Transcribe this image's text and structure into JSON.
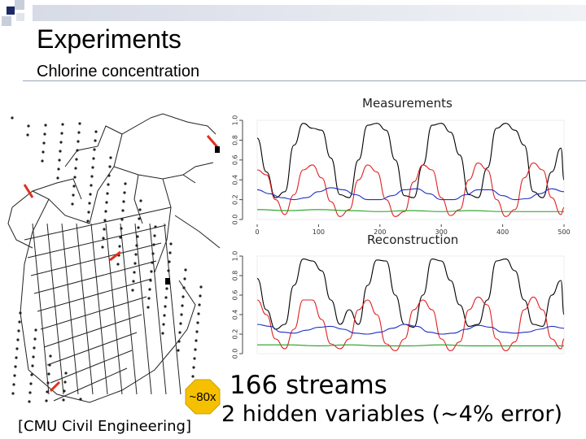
{
  "slide": {
    "title": "Experiments",
    "subtitle": "Chlorine concentration",
    "streams": "166 streams",
    "hidden_vars": "2 hidden variables (~4% error)",
    "badge": "~80x",
    "source": "[CMU Civil Engineering]",
    "accent_color": "#1c2a66",
    "badge_color": "#f5c000"
  },
  "chart_data": [
    {
      "type": "line",
      "title": "Measurements",
      "xlim": [
        0,
        500
      ],
      "ylim": [
        0,
        1
      ],
      "xticks": [
        0,
        100,
        200,
        300,
        400,
        500
      ],
      "yticks": [
        "0.0",
        "0.2",
        "0.4",
        "0.6",
        "0.8",
        "1.0"
      ],
      "series": [
        {
          "color": "#000000",
          "x": [
            0,
            15,
            30,
            45,
            60,
            75,
            90,
            105,
            120,
            135,
            150,
            165,
            180,
            195,
            210,
            225,
            240,
            255,
            270,
            285,
            300,
            315,
            330,
            345,
            360,
            375,
            390,
            405,
            420,
            435,
            450,
            465,
            480,
            495,
            500
          ],
          "y": [
            0.82,
            0.48,
            0.22,
            0.28,
            0.75,
            0.97,
            0.92,
            0.9,
            0.62,
            0.25,
            0.22,
            0.6,
            0.95,
            0.97,
            0.9,
            0.6,
            0.24,
            0.22,
            0.55,
            0.95,
            0.97,
            0.88,
            0.65,
            0.25,
            0.22,
            0.52,
            0.92,
            0.97,
            0.9,
            0.75,
            0.28,
            0.22,
            0.48,
            0.72,
            0.4
          ]
        },
        {
          "color": "#e02020",
          "x": [
            0,
            15,
            30,
            45,
            60,
            75,
            90,
            105,
            120,
            135,
            150,
            165,
            180,
            195,
            210,
            225,
            240,
            255,
            270,
            285,
            300,
            315,
            330,
            345,
            360,
            375,
            390,
            405,
            420,
            435,
            450,
            465,
            480,
            495,
            500
          ],
          "y": [
            0.5,
            0.45,
            0.2,
            0.05,
            0.25,
            0.5,
            0.55,
            0.42,
            0.18,
            0.03,
            0.1,
            0.4,
            0.55,
            0.48,
            0.2,
            0.03,
            0.08,
            0.38,
            0.55,
            0.5,
            0.22,
            0.04,
            0.1,
            0.4,
            0.57,
            0.5,
            0.2,
            0.03,
            0.1,
            0.42,
            0.57,
            0.5,
            0.22,
            0.05,
            0.12
          ]
        },
        {
          "color": "#2030c0",
          "x": [
            0,
            20,
            40,
            60,
            80,
            100,
            120,
            140,
            160,
            180,
            200,
            220,
            240,
            260,
            280,
            300,
            320,
            340,
            360,
            380,
            400,
            420,
            440,
            460,
            480,
            500
          ],
          "y": [
            0.3,
            0.26,
            0.22,
            0.2,
            0.22,
            0.28,
            0.32,
            0.3,
            0.25,
            0.2,
            0.2,
            0.24,
            0.3,
            0.31,
            0.26,
            0.2,
            0.2,
            0.25,
            0.3,
            0.3,
            0.24,
            0.2,
            0.21,
            0.26,
            0.31,
            0.28
          ]
        },
        {
          "color": "#20a020",
          "x": [
            0,
            50,
            100,
            150,
            200,
            250,
            300,
            350,
            400,
            450,
            500
          ],
          "y": [
            0.1,
            0.09,
            0.1,
            0.09,
            0.08,
            0.09,
            0.08,
            0.09,
            0.08,
            0.08,
            0.08
          ]
        }
      ]
    },
    {
      "type": "line",
      "title": "Reconstruction",
      "xlim": [
        0,
        500
      ],
      "ylim": [
        0,
        1
      ],
      "yticks": [
        "0.0",
        "0.2",
        "0.4",
        "0.6",
        "0.8",
        "1.0"
      ],
      "series": [
        {
          "color": "#000000",
          "x": [
            0,
            15,
            30,
            45,
            60,
            75,
            90,
            105,
            120,
            135,
            150,
            165,
            180,
            195,
            210,
            225,
            240,
            255,
            270,
            285,
            300,
            315,
            330,
            345,
            360,
            375,
            390,
            405,
            420,
            435,
            450,
            465,
            480,
            495,
            500
          ],
          "y": [
            0.77,
            0.45,
            0.25,
            0.3,
            0.7,
            0.97,
            0.95,
            0.85,
            0.55,
            0.3,
            0.45,
            0.3,
            0.7,
            0.96,
            0.95,
            0.6,
            0.3,
            0.27,
            0.6,
            0.97,
            0.95,
            0.75,
            0.5,
            0.28,
            0.3,
            0.55,
            0.95,
            0.97,
            0.85,
            0.55,
            0.3,
            0.28,
            0.6,
            0.75,
            0.4
          ]
        },
        {
          "color": "#e02020",
          "x": [
            0,
            15,
            30,
            45,
            60,
            75,
            90,
            105,
            120,
            135,
            150,
            165,
            180,
            195,
            210,
            225,
            240,
            255,
            270,
            285,
            300,
            315,
            330,
            345,
            360,
            375,
            390,
            405,
            420,
            435,
            450,
            465,
            480,
            495,
            500
          ],
          "y": [
            0.55,
            0.4,
            0.15,
            0.05,
            0.25,
            0.55,
            0.55,
            0.35,
            0.1,
            0.05,
            0.15,
            0.45,
            0.55,
            0.4,
            0.1,
            0.03,
            0.15,
            0.45,
            0.55,
            0.45,
            0.15,
            0.03,
            0.12,
            0.45,
            0.58,
            0.5,
            0.15,
            0.03,
            0.12,
            0.45,
            0.58,
            0.45,
            0.15,
            0.05,
            0.15
          ]
        },
        {
          "color": "#2030c0",
          "x": [
            0,
            20,
            40,
            60,
            80,
            100,
            120,
            140,
            160,
            180,
            200,
            220,
            240,
            260,
            280,
            300,
            320,
            340,
            360,
            380,
            400,
            420,
            440,
            460,
            480,
            500
          ],
          "y": [
            0.3,
            0.28,
            0.22,
            0.21,
            0.24,
            0.27,
            0.28,
            0.25,
            0.21,
            0.2,
            0.22,
            0.26,
            0.3,
            0.28,
            0.22,
            0.2,
            0.21,
            0.25,
            0.29,
            0.27,
            0.22,
            0.21,
            0.22,
            0.25,
            0.28,
            0.26
          ]
        },
        {
          "color": "#20a020",
          "x": [
            0,
            50,
            100,
            150,
            200,
            250,
            300,
            350,
            400,
            450,
            500
          ],
          "y": [
            0.09,
            0.09,
            0.08,
            0.09,
            0.08,
            0.08,
            0.09,
            0.08,
            0.08,
            0.08,
            0.08
          ]
        }
      ]
    }
  ]
}
